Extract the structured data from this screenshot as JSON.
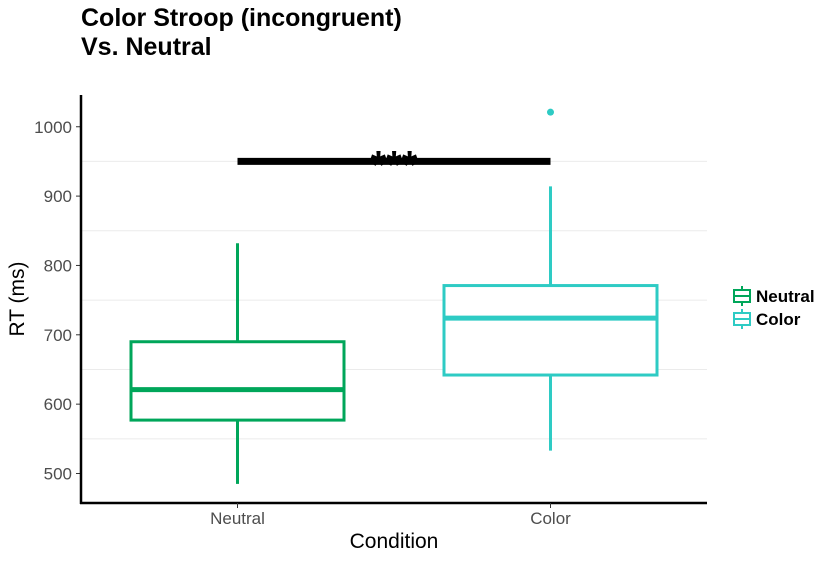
{
  "chart_data": {
    "type": "box",
    "title_lines": [
      "Color Stroop (incongruent)",
      "Vs. Neutral"
    ],
    "xlabel": "Condition",
    "ylabel": "RT (ms)",
    "ylim": [
      455,
      1045
    ],
    "yticks": [
      500,
      600,
      700,
      800,
      900,
      1000
    ],
    "grid": "horizontal minor lines only",
    "legend_position": "right",
    "categories": [
      "Neutral",
      "Color"
    ],
    "series": [
      {
        "name": "Neutral",
        "color": "#00a65a",
        "whisker_low": 485,
        "q1": 577,
        "median": 621,
        "q3": 690,
        "whisker_high": 832,
        "outliers": []
      },
      {
        "name": "Color",
        "color": "#2ecbc4",
        "whisker_low": 533,
        "q1": 642,
        "median": 724,
        "q3": 771,
        "whisker_high": 914,
        "outliers": [
          1021
        ]
      }
    ],
    "significance": {
      "label": "***",
      "from": "Neutral",
      "to": "Color",
      "y": 950
    }
  }
}
